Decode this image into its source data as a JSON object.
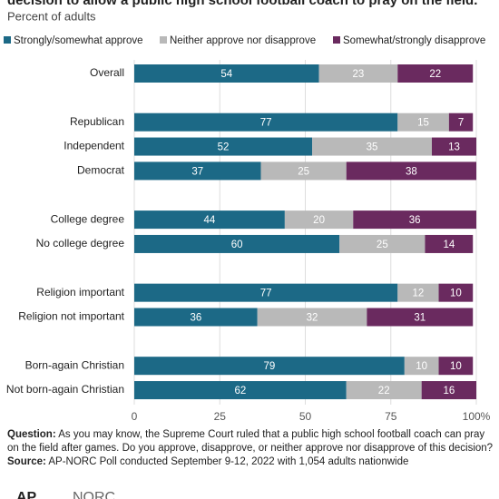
{
  "chart_data": {
    "type": "stacked-bar-horizontal",
    "title": "decision to allow a public high school football coach to pray on the field.",
    "subtitle": "Percent of adults",
    "categories": [
      "Overall",
      null,
      "Republican",
      "Independent",
      "Democrat",
      null,
      "College degree",
      "No college degree",
      null,
      "Religion important",
      "Religion not important",
      null,
      "Born-again Christian",
      "Not born-again Christian"
    ],
    "series": [
      {
        "name": "Strongly/somewhat approve",
        "color": "#1c6986",
        "values": [
          54,
          null,
          77,
          52,
          37,
          null,
          44,
          60,
          null,
          77,
          36,
          null,
          79,
          62
        ]
      },
      {
        "name": "Neither approve nor disapprove",
        "color": "#b9b9b9",
        "values": [
          23,
          null,
          15,
          35,
          25,
          null,
          20,
          25,
          null,
          12,
          32,
          null,
          10,
          22
        ]
      },
      {
        "name": "Somewhat/strongly disapprove",
        "color": "#6a2a5f",
        "values": [
          22,
          null,
          7,
          13,
          38,
          null,
          36,
          14,
          null,
          10,
          31,
          null,
          10,
          16
        ]
      }
    ],
    "xlim": [
      0,
      100
    ],
    "xticks": [
      0,
      25,
      50,
      75,
      {
        "value": 100,
        "label": "100%"
      }
    ],
    "grid": true,
    "legend": "top",
    "question_label": "Question:",
    "question": "As you may know, the Supreme Court ruled that a public high school football coach can pray on the field after games. Do you approve, disapprove, or neither approve nor disapprove of this decision?",
    "source_label": "Source:",
    "source": "AP-NORC Poll conducted September 9-12, 2022 with 1,054 adults nationwide",
    "logo_left": "AP",
    "logo_right": "NORC"
  }
}
